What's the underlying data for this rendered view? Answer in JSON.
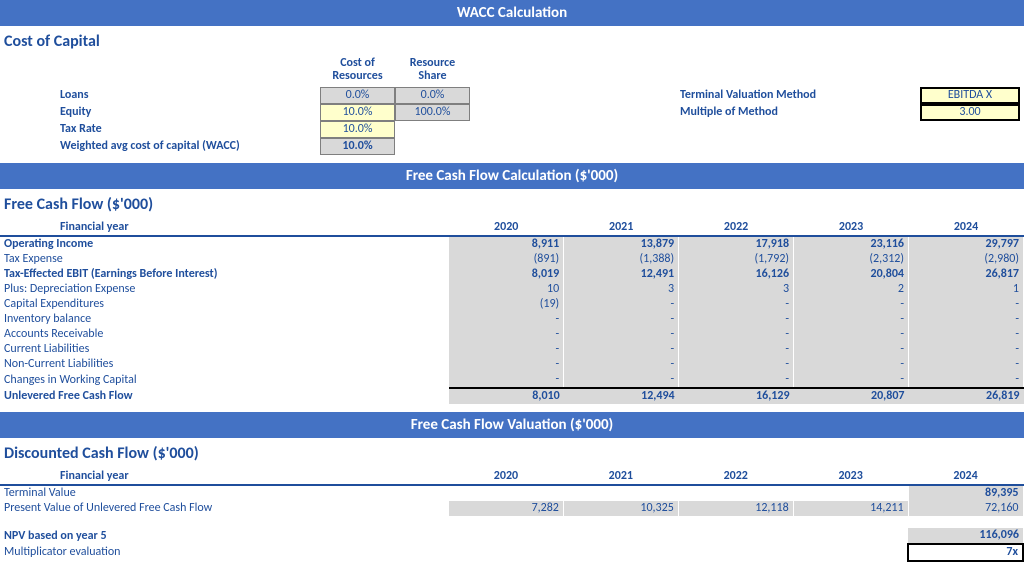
{
  "banners": {
    "wacc": "WACC Calculation",
    "fcf": "Free Cash Flow Calculation ($'000)",
    "val": "Free Cash Flow Valuation ($'000)"
  },
  "sections": {
    "cost_of_capital": "Cost of Capital",
    "free_cash_flow": "Free Cash Flow ($'000)",
    "dcf": "Discounted Cash Flow ($'000)"
  },
  "coc": {
    "headers": {
      "cost": "Cost of Resources",
      "share": "Resource Share"
    },
    "rows": {
      "loans": {
        "label": "Loans",
        "cost": "0.0%",
        "share": "0.0%"
      },
      "equity": {
        "label": "Equity",
        "cost": "10.0%",
        "share": "100.0%"
      },
      "tax": {
        "label": "Tax Rate",
        "cost": "10.0%"
      },
      "wacc": {
        "label": "Weighted avg cost of capital (WACC)",
        "cost": "10.0%"
      }
    },
    "right": {
      "method_label": "Terminal Valuation Method",
      "method_value": "EBITDA X",
      "multiple_label": "Multiple of Method",
      "multiple_value": "3.00"
    }
  },
  "fcf": {
    "fin_year_label": "Financial year",
    "years": [
      "2020",
      "2021",
      "2022",
      "2023",
      "2024"
    ],
    "rows": [
      {
        "label": "Operating Income",
        "indent": 0,
        "bold": true,
        "vals": [
          "8,911",
          "13,879",
          "17,918",
          "23,116",
          "29,797"
        ]
      },
      {
        "label": "Tax Expense",
        "indent": 1,
        "bold": false,
        "vals": [
          "(891)",
          "(1,388)",
          "(1,792)",
          "(2,312)",
          "(2,980)"
        ]
      },
      {
        "label": "Tax-Effected EBIT (Earnings Before Interest)",
        "indent": 0,
        "bold": true,
        "vals": [
          "8,019",
          "12,491",
          "16,126",
          "20,804",
          "26,817"
        ]
      },
      {
        "label": "Plus: Depreciation Expense",
        "indent": 1,
        "bold": false,
        "vals": [
          "10",
          "3",
          "3",
          "2",
          "1"
        ]
      },
      {
        "label": "Capital Expenditures",
        "indent": 1,
        "bold": false,
        "vals": [
          "(19)",
          "-",
          "-",
          "-",
          "-"
        ]
      },
      {
        "label": "Inventory balance",
        "indent": 2,
        "bold": false,
        "vals": [
          "-",
          "-",
          "-",
          "-",
          "-"
        ]
      },
      {
        "label": "Accounts Receivable",
        "indent": 2,
        "bold": false,
        "vals": [
          "-",
          "-",
          "-",
          "-",
          "-"
        ]
      },
      {
        "label": "Current Liabilities",
        "indent": 2,
        "bold": false,
        "vals": [
          "-",
          "-",
          "-",
          "-",
          "-"
        ]
      },
      {
        "label": "Non-Current Liabilities",
        "indent": 2,
        "bold": false,
        "vals": [
          "-",
          "-",
          "-",
          "-",
          "-"
        ]
      },
      {
        "label": "Changes in Working Capital",
        "indent": 1,
        "bold": false,
        "vals": [
          "-",
          "-",
          "-",
          "-",
          "-"
        ]
      }
    ],
    "total": {
      "label": "Unlevered Free Cash Flow",
      "vals": [
        "8,010",
        "12,494",
        "16,129",
        "20,807",
        "26,819"
      ]
    }
  },
  "dcf": {
    "fin_year_label": "Financial year",
    "years": [
      "2020",
      "2021",
      "2022",
      "2023",
      "2024"
    ],
    "terminal_label": "Terminal Value",
    "terminal_vals": [
      "",
      "",
      "",
      "",
      "89,395"
    ],
    "pv_label": "Present Value of Unlevered Free Cash Flow",
    "pv_vals": [
      "7,282",
      "10,325",
      "12,118",
      "14,211",
      "72,160"
    ],
    "npv_label": "NPV based on year 5",
    "npv_value": "116,096",
    "mult_label": "Multiplicator evaluation",
    "mult_value": "7x"
  }
}
